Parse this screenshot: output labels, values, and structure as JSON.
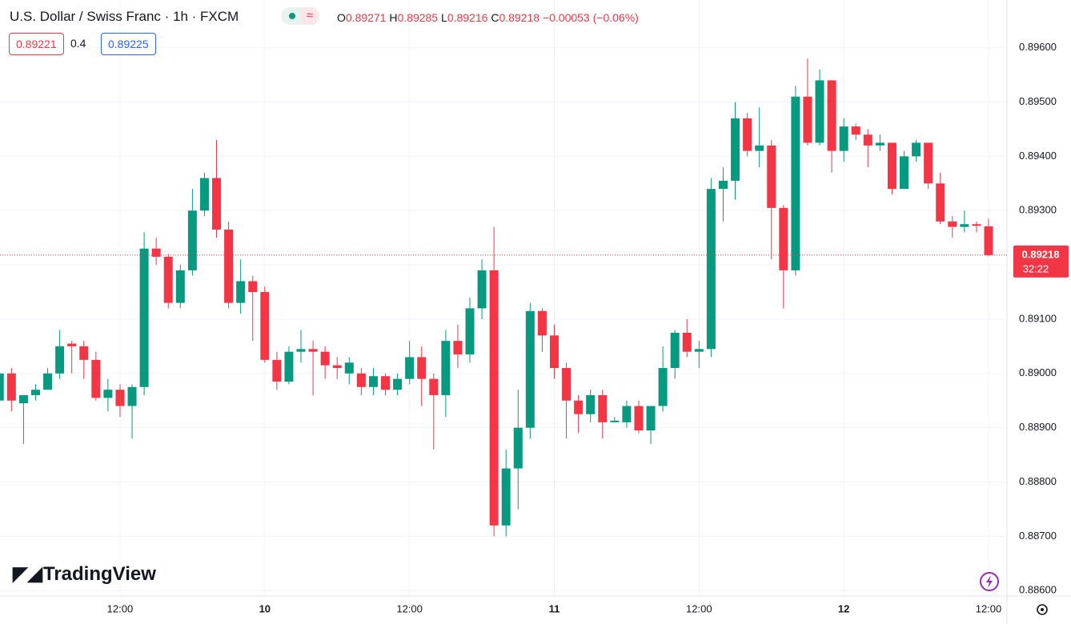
{
  "chart_data": {
    "type": "candlestick",
    "title": "U.S. Dollar / Swiss Franc · 1h · FXCM",
    "categories": [
      null,
      null,
      null,
      null,
      null,
      null,
      null,
      null,
      null,
      null,
      "12:00",
      null,
      null,
      null,
      null,
      null,
      null,
      null,
      null,
      null,
      null,
      null,
      "10",
      null,
      null,
      null,
      null,
      null,
      null,
      null,
      null,
      null,
      null,
      null,
      "12:00",
      null,
      null,
      null,
      null,
      null,
      null,
      null,
      null,
      null,
      null,
      null,
      "11",
      null,
      null,
      null,
      null,
      null,
      null,
      null,
      null,
      null,
      null,
      null,
      "12:00",
      null,
      null,
      null,
      null,
      null,
      null,
      null,
      null,
      null,
      null,
      null,
      "12",
      null,
      null,
      null,
      null,
      null,
      null,
      null,
      null,
      null,
      null,
      null,
      "12:00"
    ],
    "open": [
      0.8895,
      0.89,
      0.88945,
      0.8896,
      0.8897,
      0.89,
      0.89055,
      0.8905,
      0.89025,
      0.88955,
      0.8897,
      0.8894,
      0.88975,
      0.8923,
      0.89215,
      0.8913,
      0.8919,
      0.893,
      0.8936,
      0.89265,
      0.8913,
      0.8917,
      0.8915,
      0.89025,
      0.88985,
      0.8904,
      0.89045,
      0.8904,
      0.89015,
      0.89,
      0.89,
      0.88975,
      0.88995,
      0.8897,
      0.8899,
      0.8903,
      0.8899,
      0.8896,
      0.8906,
      0.89035,
      0.8912,
      0.8919,
      0.8872,
      0.88825,
      0.889,
      0.89115,
      0.8907,
      0.8901,
      0.8895,
      0.88925,
      0.8896,
      0.8891,
      0.8891,
      0.8894,
      0.88895,
      0.8894,
      0.8901,
      0.89075,
      0.8904,
      0.89045,
      0.8934,
      0.89355,
      0.8947,
      0.8941,
      0.8942,
      0.89305,
      0.8919,
      0.8951,
      0.89425,
      0.8954,
      0.8941,
      0.89455,
      0.8944,
      0.8942,
      0.89425,
      0.8934,
      0.894,
      0.89425,
      0.8935,
      0.8928,
      0.8927,
      0.89275,
      0.89271
    ],
    "high": [
      0.8901,
      0.8901,
      0.8896,
      0.8898,
      0.8901,
      0.8908,
      0.8906,
      0.8906,
      0.8904,
      0.8899,
      0.8898,
      0.8898,
      0.8926,
      0.8925,
      0.8922,
      0.892,
      0.8934,
      0.8937,
      0.8943,
      0.8928,
      0.8921,
      0.8918,
      0.8916,
      0.8904,
      0.8905,
      0.8908,
      0.8906,
      0.8905,
      0.8903,
      0.8903,
      0.8901,
      0.8901,
      0.89,
      0.89,
      0.8906,
      0.8905,
      0.89,
      0.8908,
      0.8909,
      0.8914,
      0.8921,
      0.8927,
      0.8886,
      0.8897,
      0.8913,
      0.8912,
      0.8909,
      0.8902,
      0.8896,
      0.8897,
      0.8897,
      0.8892,
      0.8895,
      0.8895,
      0.8894,
      0.8905,
      0.8908,
      0.891,
      0.8906,
      0.8936,
      0.8938,
      0.895,
      0.8948,
      0.8949,
      0.8943,
      0.8931,
      0.8953,
      0.8958,
      0.8956,
      0.8954,
      0.8947,
      0.8946,
      0.8945,
      0.8944,
      0.89425,
      0.8941,
      0.8943,
      0.89425,
      0.8937,
      0.8929,
      0.893,
      0.8928,
      0.89285
    ],
    "low": [
      0.8894,
      0.8893,
      0.8887,
      0.8895,
      0.8897,
      0.8899,
      0.89,
      0.8899,
      0.8895,
      0.8893,
      0.8892,
      0.8888,
      0.8896,
      0.892,
      0.8912,
      0.8912,
      0.8918,
      0.8929,
      0.8925,
      0.8912,
      0.8911,
      0.8906,
      0.8902,
      0.8897,
      0.8898,
      0.8902,
      0.8896,
      0.8899,
      0.8899,
      0.8898,
      0.8896,
      0.8896,
      0.8896,
      0.8896,
      0.8898,
      0.8894,
      0.8886,
      0.8892,
      0.8901,
      0.8902,
      0.891,
      0.887,
      0.887,
      0.8875,
      0.8888,
      0.8904,
      0.8899,
      0.8888,
      0.8889,
      0.8891,
      0.8888,
      0.8891,
      0.889,
      0.8889,
      0.8887,
      0.8893,
      0.8899,
      0.8903,
      0.8901,
      0.8903,
      0.8928,
      0.8932,
      0.894,
      0.8938,
      0.8921,
      0.8912,
      0.8918,
      0.8942,
      0.8942,
      0.8937,
      0.8939,
      0.8943,
      0.8938,
      0.8941,
      0.8933,
      0.8934,
      0.8939,
      0.8934,
      0.89275,
      0.8925,
      0.8926,
      0.8926,
      0.89216
    ],
    "close": [
      0.89,
      0.8895,
      0.8896,
      0.8897,
      0.89,
      0.8905,
      0.8905,
      0.89025,
      0.88955,
      0.8897,
      0.8894,
      0.88975,
      0.8923,
      0.89215,
      0.8913,
      0.8919,
      0.893,
      0.8936,
      0.89265,
      0.8913,
      0.8917,
      0.8915,
      0.89025,
      0.88985,
      0.8904,
      0.89045,
      0.8904,
      0.89015,
      0.8901,
      0.8902,
      0.88975,
      0.88995,
      0.8897,
      0.8899,
      0.8903,
      0.8899,
      0.8896,
      0.8906,
      0.89035,
      0.8912,
      0.8919,
      0.8872,
      0.88825,
      0.889,
      0.89115,
      0.8907,
      0.8901,
      0.8895,
      0.88925,
      0.8896,
      0.8891,
      0.88913,
      0.8894,
      0.88895,
      0.8894,
      0.8901,
      0.89075,
      0.8904,
      0.89045,
      0.8934,
      0.89355,
      0.8947,
      0.8941,
      0.8942,
      0.89305,
      0.8919,
      0.8951,
      0.89425,
      0.8954,
      0.8941,
      0.89455,
      0.8944,
      0.8942,
      0.89425,
      0.8934,
      0.894,
      0.89425,
      0.8935,
      0.8928,
      0.8927,
      0.89275,
      0.89272,
      0.89218
    ],
    "up_color": "#089981",
    "down_color": "#f23645",
    "ylim": [
      0.8859,
      0.89688
    ],
    "yticks": [
      {
        "value": 0.886,
        "label": "0.88600"
      },
      {
        "value": 0.887,
        "label": "0.88700"
      },
      {
        "value": 0.888,
        "label": "0.88800"
      },
      {
        "value": 0.889,
        "label": "0.88900"
      },
      {
        "value": 0.89,
        "label": "0.89000"
      },
      {
        "value": 0.891,
        "label": "0.89100"
      },
      {
        "value": 0.892,
        "label": "0.89200"
      },
      {
        "value": 0.893,
        "label": "0.89300"
      },
      {
        "value": 0.894,
        "label": "0.89400"
      },
      {
        "value": 0.895,
        "label": "0.89500"
      },
      {
        "value": 0.896,
        "label": "0.89600"
      }
    ],
    "grid": true,
    "bold_categories": [
      "10",
      "11",
      "12"
    ],
    "header": {
      "open_label": "O",
      "high_label": "H",
      "low_label": "L",
      "close_label": "C",
      "change": "−0.00053 (−0.06%)",
      "bid": "0.89221",
      "spread": "0.4",
      "ask": "0.89225"
    },
    "countdown": "32:22",
    "logo": "TradingView"
  }
}
